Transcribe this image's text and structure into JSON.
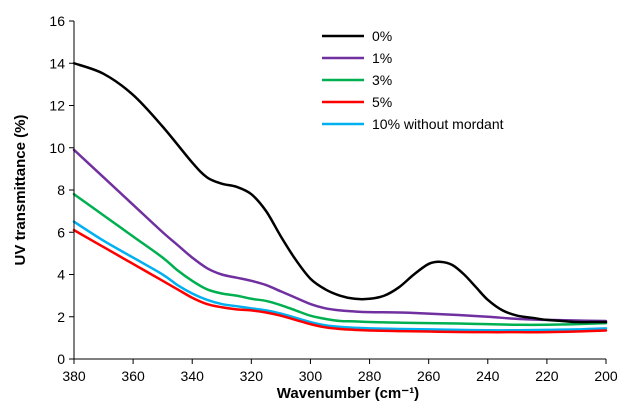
{
  "chart_data": {
    "type": "line",
    "xlabel": "Wavenumber (cm⁻¹)",
    "ylabel": "UV transmittance (%)",
    "xlim": [
      380,
      200
    ],
    "ylim": [
      0,
      16
    ],
    "x_reversed": true,
    "x_ticks": [
      380,
      360,
      340,
      320,
      300,
      280,
      260,
      240,
      220,
      200
    ],
    "y_ticks": [
      0,
      2,
      4,
      6,
      8,
      10,
      12,
      14,
      16
    ],
    "grid": false,
    "legend_position": "top-right",
    "series": [
      {
        "name": "0%",
        "color": "#000000",
        "points": [
          [
            380,
            14.0
          ],
          [
            370,
            13.5
          ],
          [
            360,
            12.5
          ],
          [
            350,
            11.0
          ],
          [
            340,
            9.3
          ],
          [
            335,
            8.6
          ],
          [
            330,
            8.3
          ],
          [
            325,
            8.15
          ],
          [
            320,
            7.8
          ],
          [
            315,
            7.0
          ],
          [
            310,
            5.8
          ],
          [
            305,
            4.7
          ],
          [
            300,
            3.8
          ],
          [
            295,
            3.3
          ],
          [
            290,
            3.0
          ],
          [
            285,
            2.85
          ],
          [
            280,
            2.85
          ],
          [
            275,
            3.0
          ],
          [
            270,
            3.4
          ],
          [
            265,
            4.0
          ],
          [
            260,
            4.5
          ],
          [
            256,
            4.6
          ],
          [
            252,
            4.45
          ],
          [
            248,
            4.0
          ],
          [
            244,
            3.4
          ],
          [
            240,
            2.8
          ],
          [
            235,
            2.3
          ],
          [
            230,
            2.05
          ],
          [
            225,
            1.95
          ],
          [
            220,
            1.85
          ],
          [
            215,
            1.8
          ],
          [
            210,
            1.75
          ],
          [
            205,
            1.75
          ],
          [
            200,
            1.75
          ]
        ]
      },
      {
        "name": "1%",
        "color": "#7030A0",
        "points": [
          [
            380,
            9.9
          ],
          [
            370,
            8.6
          ],
          [
            360,
            7.3
          ],
          [
            350,
            6.0
          ],
          [
            345,
            5.4
          ],
          [
            340,
            4.8
          ],
          [
            335,
            4.3
          ],
          [
            330,
            4.0
          ],
          [
            325,
            3.85
          ],
          [
            320,
            3.7
          ],
          [
            315,
            3.5
          ],
          [
            310,
            3.2
          ],
          [
            305,
            2.9
          ],
          [
            300,
            2.6
          ],
          [
            295,
            2.4
          ],
          [
            290,
            2.3
          ],
          [
            285,
            2.25
          ],
          [
            280,
            2.22
          ],
          [
            270,
            2.2
          ],
          [
            260,
            2.15
          ],
          [
            250,
            2.08
          ],
          [
            240,
            2.0
          ],
          [
            230,
            1.9
          ],
          [
            220,
            1.85
          ],
          [
            210,
            1.82
          ],
          [
            200,
            1.8
          ]
        ]
      },
      {
        "name": "3%",
        "color": "#00B050",
        "points": [
          [
            380,
            7.8
          ],
          [
            370,
            6.8
          ],
          [
            360,
            5.8
          ],
          [
            350,
            4.8
          ],
          [
            345,
            4.2
          ],
          [
            340,
            3.7
          ],
          [
            335,
            3.3
          ],
          [
            330,
            3.1
          ],
          [
            325,
            3.0
          ],
          [
            320,
            2.85
          ],
          [
            315,
            2.75
          ],
          [
            310,
            2.55
          ],
          [
            305,
            2.3
          ],
          [
            300,
            2.05
          ],
          [
            295,
            1.9
          ],
          [
            290,
            1.8
          ],
          [
            285,
            1.78
          ],
          [
            280,
            1.75
          ],
          [
            270,
            1.72
          ],
          [
            260,
            1.7
          ],
          [
            250,
            1.68
          ],
          [
            240,
            1.65
          ],
          [
            230,
            1.62
          ],
          [
            220,
            1.62
          ],
          [
            210,
            1.65
          ],
          [
            200,
            1.7
          ]
        ]
      },
      {
        "name": "5%",
        "color": "#FF0000",
        "points": [
          [
            380,
            6.1
          ],
          [
            370,
            5.3
          ],
          [
            360,
            4.5
          ],
          [
            350,
            3.7
          ],
          [
            345,
            3.3
          ],
          [
            340,
            2.9
          ],
          [
            335,
            2.6
          ],
          [
            330,
            2.45
          ],
          [
            325,
            2.35
          ],
          [
            320,
            2.3
          ],
          [
            315,
            2.2
          ],
          [
            310,
            2.05
          ],
          [
            305,
            1.85
          ],
          [
            300,
            1.65
          ],
          [
            295,
            1.5
          ],
          [
            290,
            1.42
          ],
          [
            285,
            1.38
          ],
          [
            280,
            1.35
          ],
          [
            270,
            1.32
          ],
          [
            260,
            1.3
          ],
          [
            250,
            1.28
          ],
          [
            240,
            1.27
          ],
          [
            230,
            1.27
          ],
          [
            220,
            1.27
          ],
          [
            210,
            1.3
          ],
          [
            200,
            1.35
          ]
        ]
      },
      {
        "name": "10% without mordant",
        "color": "#00B0F0",
        "points": [
          [
            380,
            6.5
          ],
          [
            370,
            5.6
          ],
          [
            360,
            4.8
          ],
          [
            350,
            4.0
          ],
          [
            345,
            3.5
          ],
          [
            340,
            3.1
          ],
          [
            335,
            2.8
          ],
          [
            330,
            2.6
          ],
          [
            325,
            2.5
          ],
          [
            320,
            2.4
          ],
          [
            315,
            2.3
          ],
          [
            310,
            2.15
          ],
          [
            305,
            1.95
          ],
          [
            300,
            1.75
          ],
          [
            295,
            1.6
          ],
          [
            290,
            1.52
          ],
          [
            285,
            1.48
          ],
          [
            280,
            1.45
          ],
          [
            270,
            1.42
          ],
          [
            260,
            1.4
          ],
          [
            250,
            1.38
          ],
          [
            240,
            1.36
          ],
          [
            230,
            1.36
          ],
          [
            220,
            1.38
          ],
          [
            210,
            1.4
          ],
          [
            200,
            1.45
          ]
        ]
      }
    ]
  }
}
